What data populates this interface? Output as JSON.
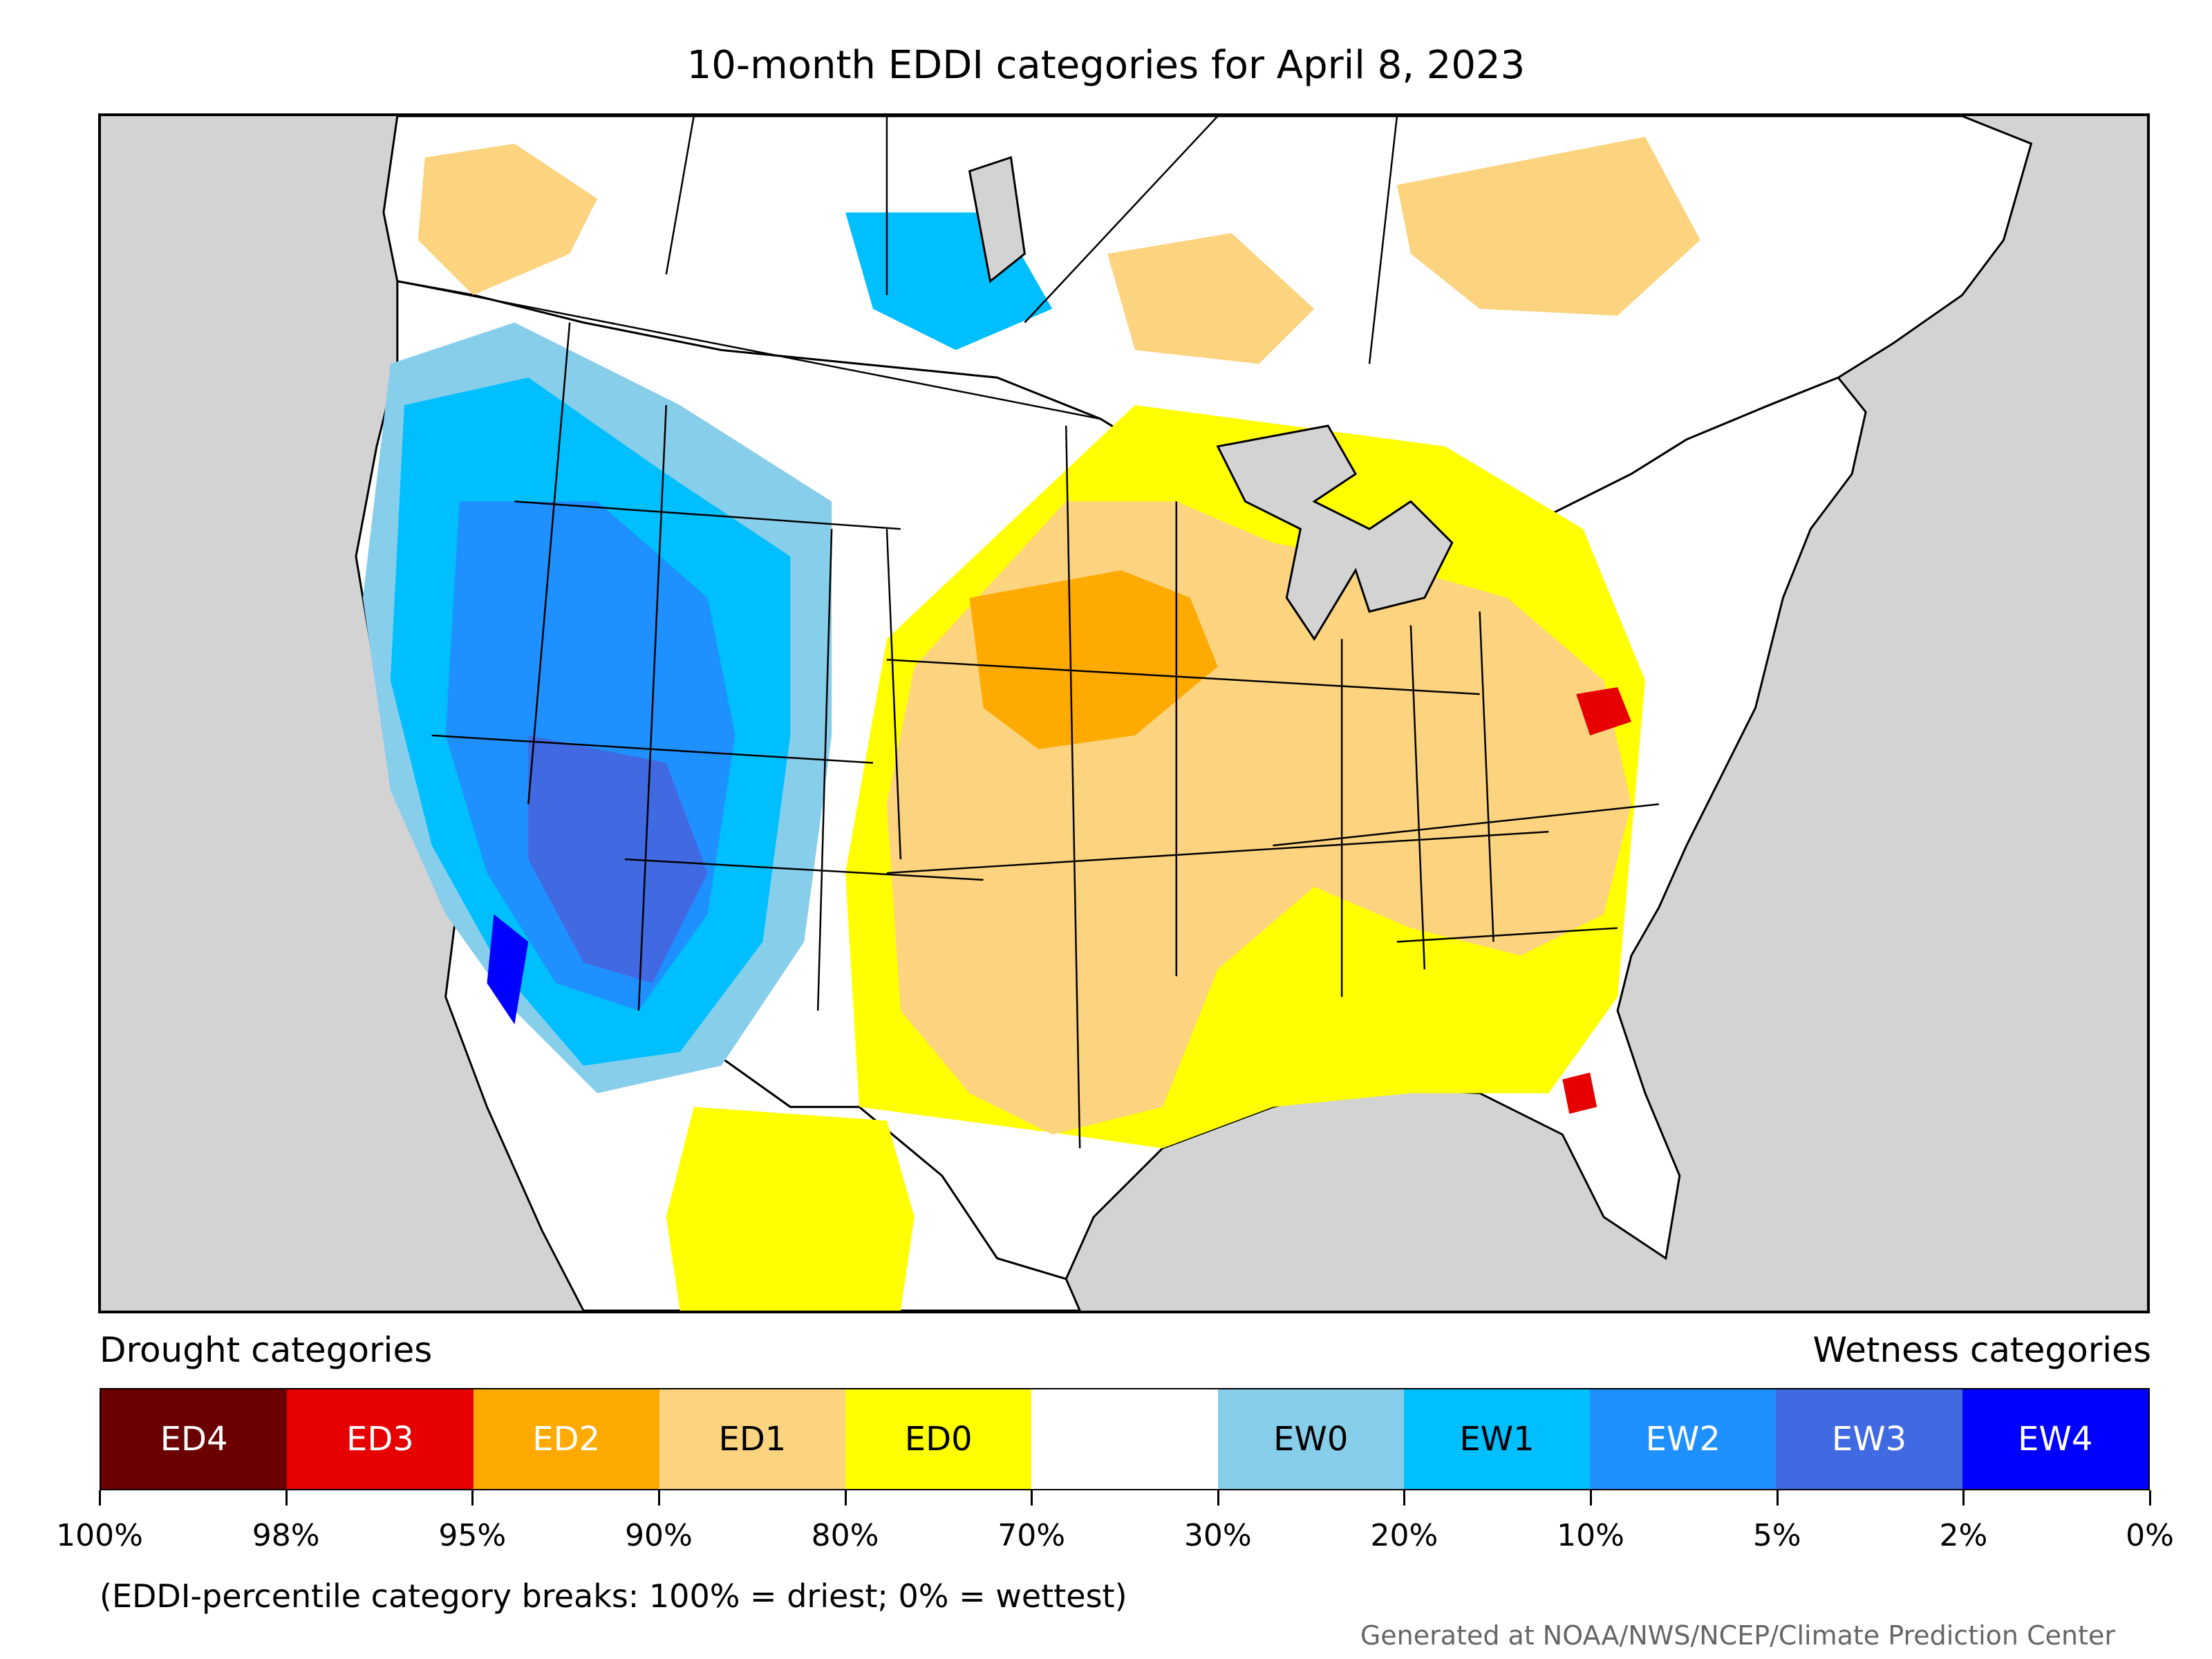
{
  "title": "10-month EDDI categories for April 8, 2023",
  "legend": {
    "drought_heading": "Drought categories",
    "wetness_heading": "Wetness categories",
    "categories": [
      {
        "label": "ED4",
        "color": "#6b0000",
        "text_color": "#ffffff"
      },
      {
        "label": "ED3",
        "color": "#e60000",
        "text_color": "#ffffff"
      },
      {
        "label": "ED2",
        "color": "#ffaa00",
        "text_color": "#ffffff"
      },
      {
        "label": "ED1",
        "color": "#fcd37f",
        "text_color": "#000000"
      },
      {
        "label": "ED0",
        "color": "#ffff00",
        "text_color": "#000000"
      },
      {
        "label": "",
        "color": "#ffffff",
        "text_color": "#000000"
      },
      {
        "label": "EW0",
        "color": "#87ceeb",
        "text_color": "#000000"
      },
      {
        "label": "EW1",
        "color": "#00bfff",
        "text_color": "#000000"
      },
      {
        "label": "EW2",
        "color": "#1e90ff",
        "text_color": "#ffffff"
      },
      {
        "label": "EW3",
        "color": "#4169e1",
        "text_color": "#ffffff"
      },
      {
        "label": "EW4",
        "color": "#0000ff",
        "text_color": "#ffffff"
      }
    ],
    "breaks": [
      "100%",
      "98%",
      "95%",
      "90%",
      "80%",
      "70%",
      "30%",
      "20%",
      "10%",
      "5%",
      "2%",
      "0%"
    ]
  },
  "note": "(EDDI-percentile category breaks: 100% = driest; 0% = wettest)",
  "credit": "Generated at NOAA/NWS/NCEP/Climate Prediction Center",
  "colors": {
    "background": "#d3d3d3",
    "border": "#000000"
  }
}
